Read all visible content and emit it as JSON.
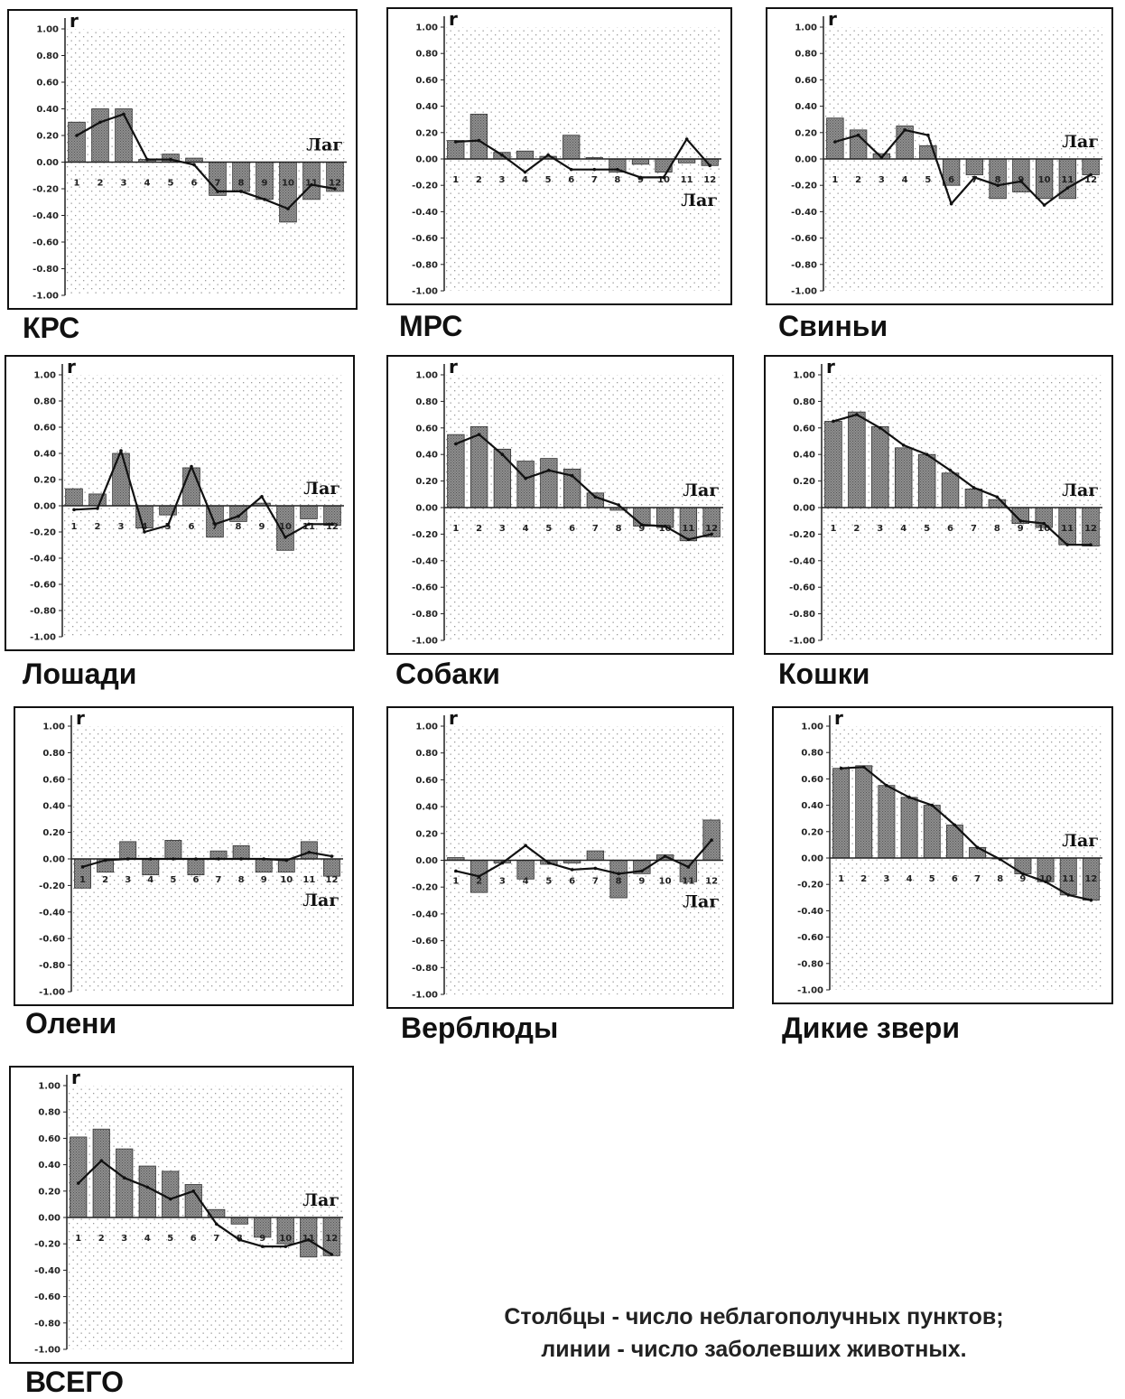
{
  "y_ticks": [
    "1.00",
    "0.80",
    "0.60",
    "0.40",
    "0.20",
    "0.00",
    "-0.20",
    "-0.40",
    "-0.60",
    "-0.80",
    "-1.00"
  ],
  "colors": {
    "bar_fill": "#8f8f8f",
    "bar_stroke": "#333333",
    "line": "#111111",
    "grid_dot": "#9a9a9a",
    "frame": "#111111"
  },
  "footnote": {
    "line1": "Столбцы - число неблагополучных пунктов;",
    "line2": "линии - число заболевших животных."
  },
  "chart_data": [
    {
      "type": "bar",
      "title": "КРС",
      "ylabel": "r",
      "xlabel": "Лаг",
      "ylim": [
        -1,
        1
      ],
      "grid": true,
      "categories": [
        "1",
        "2",
        "3",
        "4",
        "5",
        "6",
        "7",
        "8",
        "9",
        "10",
        "11",
        "12"
      ],
      "series": [
        {
          "values": [
            0.3,
            0.4,
            0.4,
            0.02,
            0.06,
            0.03,
            -0.25,
            -0.22,
            -0.28,
            -0.45,
            -0.28,
            -0.22
          ]
        },
        {
          "values": [
            0.2,
            0.3,
            0.36,
            0.02,
            0.02,
            -0.02,
            -0.22,
            -0.22,
            -0.28,
            -0.35,
            -0.17,
            -0.2
          ]
        }
      ]
    },
    {
      "type": "bar",
      "title": "МРС",
      "ylabel": "r",
      "xlabel": "Лаг",
      "ylim": [
        -1,
        1
      ],
      "grid": true,
      "categories": [
        "1",
        "2",
        "3",
        "4",
        "5",
        "6",
        "7",
        "8",
        "9",
        "10",
        "11",
        "12"
      ],
      "series": [
        {
          "values": [
            0.14,
            0.34,
            0.05,
            0.06,
            0.02,
            0.18,
            0.01,
            -0.1,
            -0.04,
            -0.1,
            -0.03,
            -0.05
          ]
        },
        {
          "values": [
            0.13,
            0.14,
            0.03,
            -0.1,
            0.03,
            -0.08,
            -0.08,
            -0.08,
            -0.14,
            -0.14,
            0.15,
            -0.05
          ]
        }
      ]
    },
    {
      "type": "bar",
      "title": "Свиньи",
      "ylabel": "r",
      "xlabel": "Лаг",
      "ylim": [
        -1,
        1
      ],
      "grid": true,
      "categories": [
        "1",
        "2",
        "3",
        "4",
        "5",
        "6",
        "7",
        "8",
        "9",
        "10",
        "11",
        "12"
      ],
      "series": [
        {
          "values": [
            0.31,
            0.22,
            0.04,
            0.25,
            0.1,
            -0.2,
            -0.12,
            -0.3,
            -0.25,
            -0.3,
            -0.3,
            -0.12
          ]
        },
        {
          "values": [
            0.13,
            0.18,
            0.01,
            0.22,
            0.18,
            -0.34,
            -0.14,
            -0.2,
            -0.17,
            -0.35,
            -0.22,
            -0.12
          ]
        }
      ]
    },
    {
      "type": "bar",
      "title": "Лошади",
      "ylabel": "r",
      "xlabel": "Лаг",
      "ylim": [
        -1,
        1
      ],
      "grid": true,
      "categories": [
        "1",
        "2",
        "3",
        "4",
        "5",
        "6",
        "7",
        "8",
        "9",
        "10",
        "11",
        "12"
      ],
      "series": [
        {
          "values": [
            0.13,
            0.09,
            0.4,
            -0.17,
            -0.07,
            0.29,
            -0.24,
            -0.12,
            0.02,
            -0.34,
            -0.1,
            -0.15
          ]
        },
        {
          "values": [
            -0.03,
            -0.02,
            0.42,
            -0.2,
            -0.15,
            0.3,
            -0.14,
            -0.08,
            0.07,
            -0.24,
            -0.14,
            -0.14
          ]
        }
      ]
    },
    {
      "type": "bar",
      "title": "Собаки",
      "ylabel": "r",
      "xlabel": "Лаг",
      "ylim": [
        -1,
        1
      ],
      "grid": true,
      "categories": [
        "1",
        "2",
        "3",
        "4",
        "5",
        "6",
        "7",
        "8",
        "9",
        "10",
        "11",
        "12"
      ],
      "series": [
        {
          "values": [
            0.55,
            0.61,
            0.44,
            0.35,
            0.37,
            0.29,
            0.11,
            -0.02,
            -0.14,
            -0.15,
            -0.25,
            -0.22
          ]
        },
        {
          "values": [
            0.48,
            0.55,
            0.4,
            0.22,
            0.28,
            0.24,
            0.08,
            0.02,
            -0.13,
            -0.14,
            -0.24,
            -0.2
          ]
        }
      ]
    },
    {
      "type": "bar",
      "title": "Кошки",
      "ylabel": "r",
      "xlabel": "Лаг",
      "ylim": [
        -1,
        1
      ],
      "grid": true,
      "categories": [
        "1",
        "2",
        "3",
        "4",
        "5",
        "6",
        "7",
        "8",
        "9",
        "10",
        "11",
        "12"
      ],
      "series": [
        {
          "values": [
            0.65,
            0.72,
            0.61,
            0.45,
            0.4,
            0.26,
            0.14,
            0.06,
            -0.12,
            -0.15,
            -0.28,
            -0.29
          ]
        },
        {
          "values": [
            0.65,
            0.7,
            0.6,
            0.47,
            0.4,
            0.28,
            0.15,
            0.08,
            -0.1,
            -0.12,
            -0.28,
            -0.28
          ]
        }
      ]
    },
    {
      "type": "bar",
      "title": "Олени",
      "ylabel": "r",
      "xlabel": "Лаг",
      "ylim": [
        -1,
        1
      ],
      "grid": true,
      "categories": [
        "1",
        "2",
        "3",
        "4",
        "5",
        "6",
        "7",
        "8",
        "9",
        "10",
        "11",
        "12"
      ],
      "series": [
        {
          "values": [
            -0.22,
            -0.1,
            0.13,
            -0.12,
            0.14,
            -0.12,
            0.06,
            0.1,
            -0.1,
            -0.1,
            0.13,
            -0.13
          ]
        },
        {
          "values": [
            -0.06,
            -0.01,
            0.0,
            0.0,
            0.0,
            0.0,
            0.0,
            0.0,
            0.0,
            -0.01,
            0.05,
            0.02
          ]
        }
      ]
    },
    {
      "type": "bar",
      "title": "Верблюды",
      "ylabel": "r",
      "xlabel": "Лаг",
      "ylim": [
        -1,
        1
      ],
      "grid": true,
      "categories": [
        "1",
        "2",
        "3",
        "4",
        "5",
        "6",
        "7",
        "8",
        "9",
        "10",
        "11",
        "12"
      ],
      "series": [
        {
          "values": [
            0.02,
            -0.24,
            -0.02,
            -0.14,
            -0.03,
            -0.02,
            0.07,
            -0.28,
            -0.1,
            0.04,
            -0.16,
            0.3
          ]
        },
        {
          "values": [
            -0.08,
            -0.12,
            -0.02,
            0.11,
            -0.02,
            -0.07,
            -0.06,
            -0.1,
            -0.08,
            0.03,
            -0.05,
            0.15
          ]
        }
      ]
    },
    {
      "type": "bar",
      "title": "Дикие звери",
      "ylabel": "r",
      "xlabel": "Лаг",
      "ylim": [
        -1,
        1
      ],
      "grid": true,
      "categories": [
        "1",
        "2",
        "3",
        "4",
        "5",
        "6",
        "7",
        "8",
        "9",
        "10",
        "11",
        "12"
      ],
      "series": [
        {
          "values": [
            0.68,
            0.7,
            0.55,
            0.46,
            0.4,
            0.25,
            0.08,
            0.0,
            -0.12,
            -0.18,
            -0.28,
            -0.32
          ]
        },
        {
          "values": [
            0.68,
            0.69,
            0.55,
            0.46,
            0.4,
            0.25,
            0.08,
            -0.01,
            -0.12,
            -0.18,
            -0.28,
            -0.32
          ]
        }
      ]
    },
    {
      "type": "bar",
      "title": "ВСЕГО",
      "ylabel": "r",
      "xlabel": "Лаг",
      "ylim": [
        -1,
        1
      ],
      "grid": true,
      "categories": [
        "1",
        "2",
        "3",
        "4",
        "5",
        "6",
        "7",
        "8",
        "9",
        "10",
        "11",
        "12"
      ],
      "series": [
        {
          "values": [
            0.61,
            0.67,
            0.52,
            0.39,
            0.35,
            0.25,
            0.06,
            -0.05,
            -0.15,
            -0.2,
            -0.3,
            -0.29
          ]
        },
        {
          "values": [
            0.26,
            0.43,
            0.3,
            0.23,
            0.14,
            0.2,
            -0.05,
            -0.17,
            -0.22,
            -0.22,
            -0.17,
            -0.28
          ]
        }
      ]
    }
  ]
}
